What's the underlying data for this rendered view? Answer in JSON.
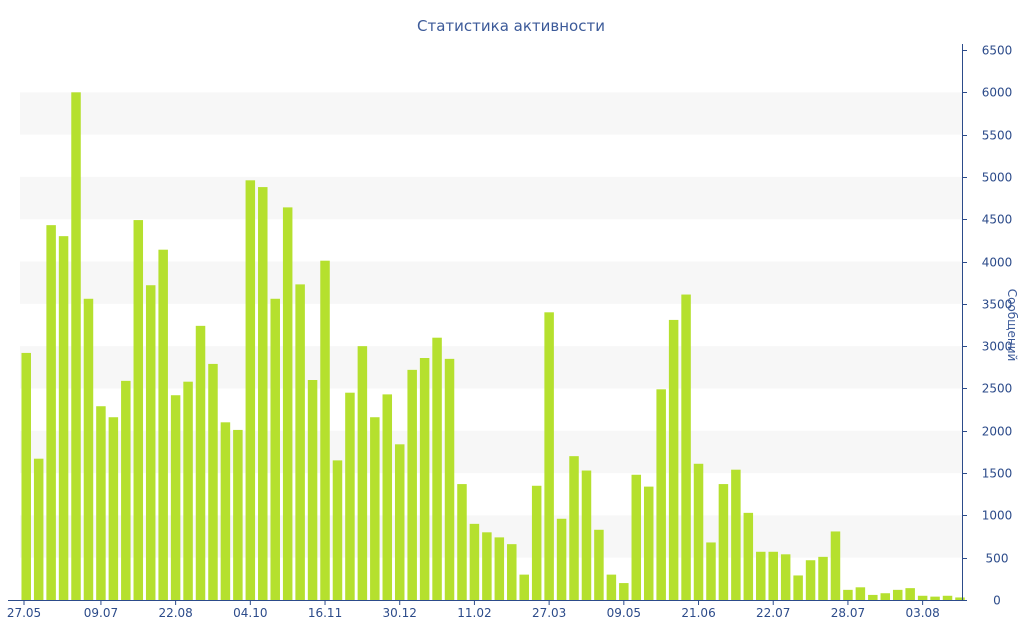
{
  "chart_data": {
    "type": "bar",
    "title": "Статистика активности",
    "xlabel": "",
    "ylabel": "Сообщений",
    "ylim": [
      0,
      6500
    ],
    "y_ticks": [
      0,
      500,
      1000,
      1500,
      2000,
      2500,
      3000,
      3500,
      4000,
      4500,
      5000,
      5500,
      6000,
      6500
    ],
    "y_axis_side": "right",
    "grid": "alternating horizontal bands",
    "legend": "none",
    "bar_color": "#b5e02e",
    "band_color": "#f7f7f7",
    "axis_color": "#2c4b8a",
    "x_tick_labels": [
      {
        "index": 0,
        "label": "27.05"
      },
      {
        "index": 6,
        "label": "09.07"
      },
      {
        "index": 12,
        "label": "22.08"
      },
      {
        "index": 18,
        "label": "04.10"
      },
      {
        "index": 24,
        "label": "16.11"
      },
      {
        "index": 30,
        "label": "30.12"
      },
      {
        "index": 36,
        "label": "11.02"
      },
      {
        "index": 42,
        "label": "27.03"
      },
      {
        "index": 48,
        "label": "09.05"
      },
      {
        "index": 54,
        "label": "21.06"
      },
      {
        "index": 60,
        "label": "22.07"
      },
      {
        "index": 66,
        "label": "28.07"
      },
      {
        "index": 72,
        "label": "03.08"
      }
    ],
    "values": [
      2920,
      1670,
      4430,
      4300,
      6000,
      3560,
      2290,
      2160,
      2590,
      4490,
      3720,
      4140,
      2420,
      2580,
      3240,
      2790,
      2100,
      2010,
      4960,
      4880,
      3560,
      4640,
      3730,
      2600,
      4010,
      1650,
      2450,
      3000,
      2160,
      2430,
      1840,
      2720,
      2860,
      3100,
      2850,
      1370,
      900,
      800,
      740,
      660,
      300,
      1350,
      3400,
      960,
      1700,
      1530,
      830,
      300,
      200,
      1480,
      1340,
      2490,
      3310,
      3610,
      1610,
      680,
      1370,
      1540,
      1030,
      570,
      570,
      540,
      290,
      470,
      510,
      810,
      120,
      150,
      60,
      80,
      120,
      140,
      50,
      40,
      50,
      30
    ]
  }
}
